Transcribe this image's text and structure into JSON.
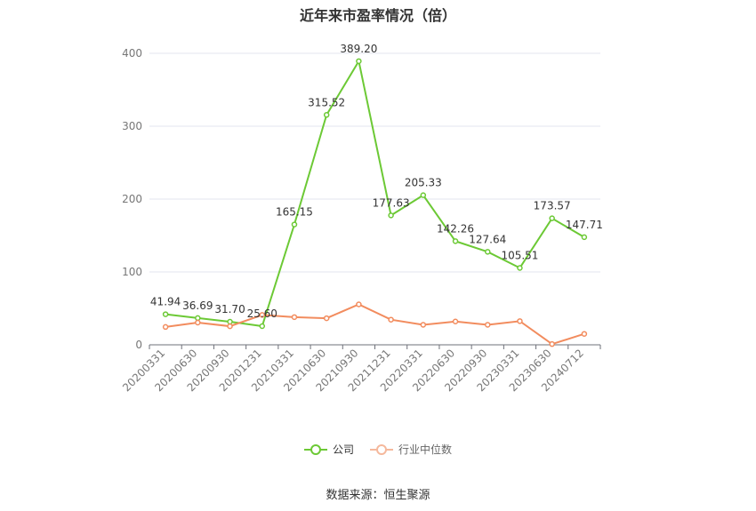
{
  "title": "近年来市盈率情况（倍）",
  "source": "数据来源：恒生聚源",
  "chart_data": {
    "type": "line",
    "title": "近年来市盈率情况（倍）",
    "categories": [
      "20200331",
      "20200630",
      "20200930",
      "20201231",
      "20210331",
      "20210630",
      "20210930",
      "20211231",
      "20220331",
      "20220630",
      "20220930",
      "20230331",
      "20230630",
      "20240712"
    ],
    "ylim": [
      0,
      400
    ],
    "yticks": [
      0,
      100,
      200,
      300,
      400
    ],
    "grid": true,
    "legend_position": "bottom-center",
    "series": [
      {
        "name": "公司",
        "color": "#6cc935",
        "values": [
          41.94,
          36.69,
          31.7,
          25.6,
          165.15,
          315.52,
          389.2,
          177.63,
          205.33,
          142.26,
          127.64,
          105.51,
          173.57,
          147.71
        ],
        "labels": [
          "41.94",
          "36.69",
          "31.70",
          "25.60",
          "165.15",
          "315.52",
          "389.20",
          "177.63",
          "205.33",
          "142.26",
          "127.64",
          "105.51",
          "173.57",
          "147.71"
        ]
      },
      {
        "name": "行业中位数",
        "color": "#f28c5e",
        "values": [
          24.5,
          30.5,
          25.5,
          41.0,
          38.0,
          36.5,
          55.5,
          34.5,
          27.5,
          32.0,
          27.5,
          32.5,
          1.0,
          15.0
        ]
      }
    ]
  }
}
